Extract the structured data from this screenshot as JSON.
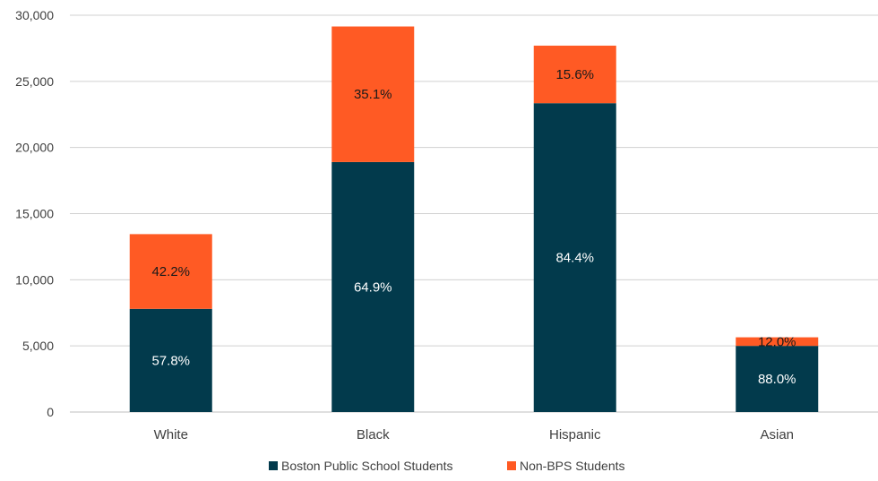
{
  "chart_data": {
    "type": "bar",
    "stacked": true,
    "title": "",
    "xlabel": "",
    "ylabel": "",
    "categories": [
      "White",
      "Black",
      "Hispanic",
      "Asian"
    ],
    "ylim": [
      0,
      30000
    ],
    "yticks": [
      0,
      5000,
      10000,
      15000,
      20000,
      25000,
      30000
    ],
    "ytick_labels": [
      "0",
      "5,000",
      "10,000",
      "15,000",
      "20,000",
      "25,000",
      "30,000"
    ],
    "grid": true,
    "legend_position": "bottom",
    "series": [
      {
        "name": "Boston Public School Students",
        "color": "#023a4c",
        "values": [
          7800,
          18900,
          23350,
          5000
        ],
        "labels": [
          "57.8%",
          "64.9%",
          "84.4%",
          "88.0%"
        ],
        "label_color": "#ffffff"
      },
      {
        "name": "Non-BPS Students",
        "color": "#ff5a24",
        "values": [
          5650,
          10250,
          4350,
          650
        ],
        "labels": [
          "42.2%",
          "35.1%",
          "15.6%",
          "12.0%"
        ],
        "label_color": "#1a1a1a"
      }
    ]
  }
}
